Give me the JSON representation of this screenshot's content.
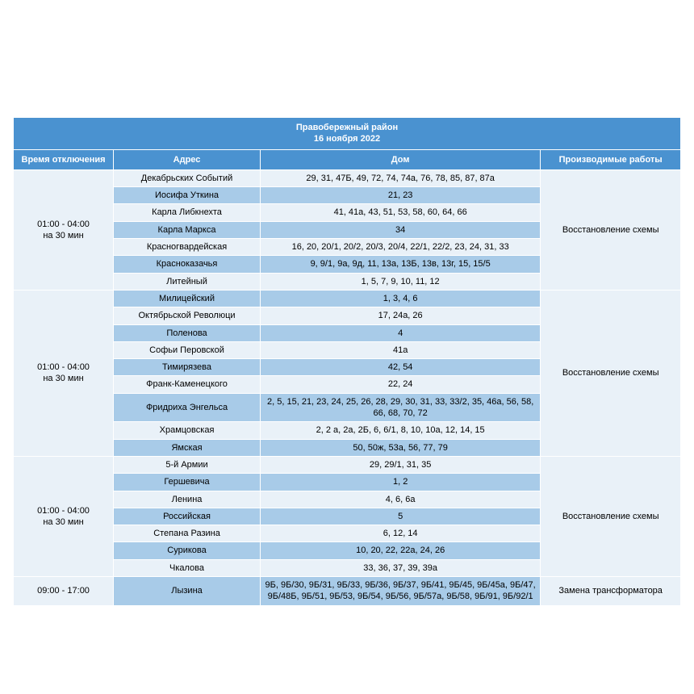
{
  "title_line1": "Правобережный район",
  "title_line2": "16 ноября 2022",
  "headers": {
    "time": "Время отключения",
    "address": "Адрес",
    "house": "Дом",
    "works": "Производимые работы"
  },
  "colors": {
    "header_bg": "#4a92d0",
    "header_text": "#ffffff",
    "row_light": "#e9f1f8",
    "row_dark": "#a8cbe8",
    "border": "#ffffff",
    "text": "#000000"
  },
  "layout": {
    "col_widths_pct": [
      15,
      22,
      42,
      21
    ],
    "font_size_pt": 8,
    "font_family": "Arial"
  },
  "groups": [
    {
      "time": "01:00 - 04:00\nна 30 мин",
      "works": "Восстановление схемы",
      "rows": [
        {
          "shade": "light",
          "address": "Декабрьских Событий",
          "house": "29, 31, 47Б, 49, 72, 74, 74а, 76, 78, 85, 87, 87а"
        },
        {
          "shade": "dark",
          "address": "Иосифа Уткина",
          "house": "21, 23"
        },
        {
          "shade": "light",
          "address": "Карла Либкнехта",
          "house": "41, 41а, 43, 51, 53, 58, 60, 64, 66"
        },
        {
          "shade": "dark",
          "address": "Карла Маркса",
          "house": "34"
        },
        {
          "shade": "light",
          "address": "Красногвардейская",
          "house": "16, 20, 20/1, 20/2, 20/3, 20/4, 22/1, 22/2, 23, 24, 31, 33"
        },
        {
          "shade": "dark",
          "address": "Красноказачья",
          "house": "9, 9/1, 9а, 9д, 11, 13а, 13Б, 13в, 13г, 15, 15/5"
        },
        {
          "shade": "light",
          "address": "Литейный",
          "house": "1, 5, 7, 9, 10, 11, 12"
        }
      ]
    },
    {
      "time": "01:00 - 04:00\nна 30 мин",
      "works": "Восстановление схемы",
      "rows": [
        {
          "shade": "dark",
          "address": "Милицейский",
          "house": "1, 3, 4, 6"
        },
        {
          "shade": "light",
          "address": "Октябрьской Революци",
          "house": "17, 24а, 26"
        },
        {
          "shade": "dark",
          "address": "Поленова",
          "house": "4"
        },
        {
          "shade": "light",
          "address": "Софьи Перовской",
          "house": "41а"
        },
        {
          "shade": "dark",
          "address": "Тимирязева",
          "house": "42, 54"
        },
        {
          "shade": "light",
          "address": "Франк-Каменецкого",
          "house": "22, 24"
        },
        {
          "shade": "dark",
          "address": "Фридриха Энгельса",
          "house": "2, 5, 15, 21, 23, 24, 25, 26, 28, 29, 30, 31, 33, 33/2, 35, 46а, 56, 58, 66, 68, 70, 72"
        },
        {
          "shade": "light",
          "address": "Храмцовская",
          "house": "2, 2 а, 2а, 2Б, 6, 6/1, 8, 10, 10а, 12, 14, 15"
        },
        {
          "shade": "dark",
          "address": "Ямская",
          "house": "50, 50ж, 53а, 56, 77, 79"
        }
      ]
    },
    {
      "time": "01:00 - 04:00\nна 30 мин",
      "works": "Восстановление схемы",
      "rows": [
        {
          "shade": "light",
          "address": "5-й Армии",
          "house": "29, 29/1, 31, 35"
        },
        {
          "shade": "dark",
          "address": "Гершевича",
          "house": "1, 2"
        },
        {
          "shade": "light",
          "address": "Ленина",
          "house": "4, 6, 6а"
        },
        {
          "shade": "dark",
          "address": "Российская",
          "house": "5"
        },
        {
          "shade": "light",
          "address": "Степана Разина",
          "house": "6, 12, 14"
        },
        {
          "shade": "dark",
          "address": "Сурикова",
          "house": "10, 20, 22, 22а, 24, 26"
        },
        {
          "shade": "light",
          "address": "Чкалова",
          "house": "33, 36, 37, 39, 39а"
        }
      ]
    },
    {
      "time": "09:00 - 17:00",
      "works": "Замена трансформатора",
      "rows": [
        {
          "shade": "dark",
          "address": "Лызина",
          "house": "9Б, 9Б/30, 9Б/31, 9Б/33, 9Б/36, 9Б/37, 9Б/41, 9Б/45, 9Б/45а, 9Б/47, 9Б/48Б, 9Б/51, 9Б/53, 9Б/54, 9Б/56, 9Б/57а, 9Б/58, 9Б/91, 9Б/92/1"
        }
      ]
    }
  ]
}
